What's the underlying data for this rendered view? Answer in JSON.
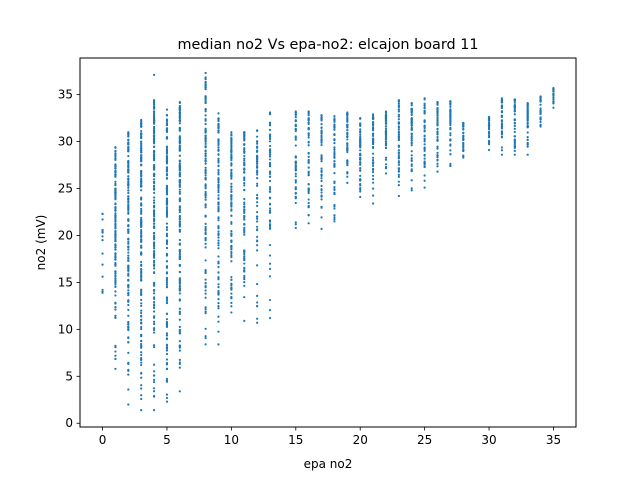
{
  "chart_data": {
    "type": "scatter",
    "title": "median no2 Vs epa-no2: elcajon board 11",
    "xlabel": "epa no2",
    "ylabel": "no2 (mV)",
    "xlim": [
      -1.75,
      36.75
    ],
    "ylim": [
      -0.4,
      38.9
    ],
    "xticks": [
      0,
      5,
      10,
      15,
      20,
      25,
      30,
      35
    ],
    "yticks": [
      0,
      5,
      10,
      15,
      20,
      25,
      30,
      35
    ],
    "grid": false,
    "marker_color": "#1f77b4",
    "series": [
      {
        "columns": [
          {
            "x": 0,
            "min": 14.0,
            "max": 22.3,
            "n": 8,
            "extras": [
              22.3,
              19.9,
              19.5,
              15.6,
              14.2,
              13.9
            ]
          },
          {
            "x": 1,
            "min": 5.8,
            "max": 29.4,
            "n": 140
          },
          {
            "x": 2,
            "min": 2.0,
            "max": 31.0,
            "n": 150
          },
          {
            "x": 3,
            "min": 1.4,
            "max": 32.3,
            "n": 160
          },
          {
            "x": 4,
            "min": 1.4,
            "max": 34.4,
            "n": 170,
            "extras": [
              37.1
            ]
          },
          {
            "x": 5,
            "min": 2.3,
            "max": 33.4,
            "n": 160
          },
          {
            "x": 6,
            "min": 3.4,
            "max": 34.2,
            "n": 160
          },
          {
            "x": 8,
            "min": 8.4,
            "max": 37.3,
            "n": 130
          },
          {
            "x": 9,
            "min": 8.4,
            "max": 33.0,
            "n": 110
          },
          {
            "x": 10,
            "min": 11.8,
            "max": 31.0,
            "n": 100
          },
          {
            "x": 11,
            "min": 10.9,
            "max": 31.0,
            "n": 80
          },
          {
            "x": 12,
            "min": 10.7,
            "max": 31.2,
            "n": 60
          },
          {
            "x": 13,
            "min": 11.2,
            "max": 33.1,
            "n": 60
          },
          {
            "x": 15,
            "min": 20.8,
            "max": 33.2,
            "n": 50
          },
          {
            "x": 16,
            "min": 21.3,
            "max": 33.2,
            "n": 50
          },
          {
            "x": 17,
            "min": 20.7,
            "max": 32.8,
            "n": 50
          },
          {
            "x": 18,
            "min": 21.5,
            "max": 32.7,
            "n": 50
          },
          {
            "x": 19,
            "min": 25.6,
            "max": 33.1,
            "n": 50
          },
          {
            "x": 20,
            "min": 24.1,
            "max": 32.5,
            "n": 50
          },
          {
            "x": 21,
            "min": 23.4,
            "max": 32.9,
            "n": 50
          },
          {
            "x": 22,
            "min": 26.6,
            "max": 33.2,
            "n": 50
          },
          {
            "x": 23,
            "min": 24.2,
            "max": 34.4,
            "n": 50
          },
          {
            "x": 24,
            "min": 24.8,
            "max": 34.1,
            "n": 50
          },
          {
            "x": 25,
            "min": 25.1,
            "max": 34.6,
            "n": 50
          },
          {
            "x": 26,
            "min": 26.8,
            "max": 34.2,
            "n": 50
          },
          {
            "x": 27,
            "min": 27.4,
            "max": 34.3,
            "n": 50
          },
          {
            "x": 28,
            "min": 28.3,
            "max": 32.0,
            "n": 30
          },
          {
            "x": 30,
            "min": 29.1,
            "max": 32.6,
            "n": 30
          },
          {
            "x": 31,
            "min": 28.6,
            "max": 34.6,
            "n": 40
          },
          {
            "x": 32,
            "min": 28.6,
            "max": 34.5,
            "n": 40
          },
          {
            "x": 33,
            "min": 28.6,
            "max": 34.1,
            "n": 40
          },
          {
            "x": 34,
            "min": 31.6,
            "max": 34.8,
            "n": 30
          },
          {
            "x": 35,
            "min": 33.6,
            "max": 35.7,
            "n": 20
          }
        ]
      }
    ]
  }
}
